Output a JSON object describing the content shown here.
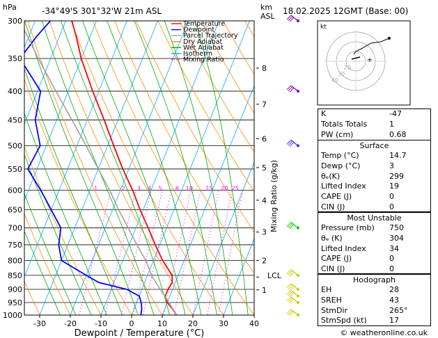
{
  "header": {
    "hpa_label": "hPa",
    "location": "-34°49'S  301°32'W  21m  ASL",
    "km_label": "km",
    "asl_label": "ASL",
    "datetime": "18.02.2025  12GMT  (Base: 00)"
  },
  "legend": [
    {
      "label": "Temperature",
      "color": "#ff0000",
      "style": "solid"
    },
    {
      "label": "Dewpoint",
      "color": "#0000ff",
      "style": "solid"
    },
    {
      "label": "Parcel Trajectory",
      "color": "#a0a0a0",
      "style": "solid"
    },
    {
      "label": "Dry Adiabat",
      "color": "#ff8c00",
      "style": "solid"
    },
    {
      "label": "Wet Adiabat",
      "color": "#00aa00",
      "style": "solid"
    },
    {
      "label": "Isotherm",
      "color": "#00aaff",
      "style": "solid"
    },
    {
      "label": "Mixing Ratio",
      "color": "#ff00ff",
      "style": "dotted"
    }
  ],
  "chart_data": {
    "type": "line",
    "xlabel": "Dewpoint / Temperature (°C)",
    "ylabel": "",
    "y_scale": "log-pressure",
    "xlim": [
      -35,
      40
    ],
    "ylim": [
      1000,
      300
    ],
    "pressure_ticks": [
      300,
      350,
      400,
      450,
      500,
      550,
      600,
      650,
      700,
      750,
      800,
      850,
      900,
      950,
      1000
    ],
    "temp_ticks": [
      -30,
      -20,
      -10,
      0,
      10,
      20,
      30,
      40
    ],
    "height_axis": {
      "ticks": [
        {
          "label": "8",
          "p": 364
        },
        {
          "label": "7",
          "p": 422
        },
        {
          "label": "6",
          "p": 486
        },
        {
          "label": "5",
          "p": 547
        },
        {
          "label": "4",
          "p": 625
        },
        {
          "label": "3",
          "p": 712
        },
        {
          "label": "2",
          "p": 800
        },
        {
          "label": "1",
          "p": 902
        }
      ],
      "lcl": {
        "label": "LCL",
        "p": 856
      },
      "mixing_label": "Mixing Ratio (g/kg)"
    },
    "mixing_ratio_labels": [
      {
        "label": "1",
        "p": 600,
        "t": -28
      },
      {
        "label": "2",
        "p": 600,
        "t": -19
      },
      {
        "label": "3",
        "p": 600,
        "t": -14
      },
      {
        "label": "4",
        "p": 600,
        "t": -10.5
      },
      {
        "label": "5",
        "p": 600,
        "t": -7
      },
      {
        "label": "8",
        "p": 600,
        "t": -1.5
      },
      {
        "label": "10",
        "p": 600,
        "t": 2.5
      },
      {
        "label": "15",
        "p": 600,
        "t": 9
      },
      {
        "label": "20",
        "p": 600,
        "t": 14
      },
      {
        "label": "25",
        "p": 600,
        "t": 17.5
      }
    ],
    "series": [
      {
        "name": "Temperature",
        "color": "#ff0000",
        "p": [
          1000,
          975,
          950,
          925,
          900,
          875,
          850,
          800,
          750,
          700,
          650,
          600,
          550,
          500,
          450,
          400,
          350,
          320,
          300
        ],
        "t": [
          14.7,
          12.5,
          10.0,
          8.5,
          8.5,
          9.0,
          8.0,
          3.0,
          -1.5,
          -6.0,
          -11.0,
          -16.0,
          -22.0,
          -28.0,
          -34.5,
          -42.0,
          -50.0,
          -54.5,
          -58.0
        ]
      },
      {
        "name": "Dewpoint",
        "color": "#0000ff",
        "p": [
          1000,
          975,
          950,
          925,
          900,
          875,
          850,
          800,
          750,
          700,
          650,
          600,
          550,
          500,
          450,
          400,
          350,
          320,
          300
        ],
        "t": [
          3.0,
          2.5,
          1.5,
          0.0,
          -5.0,
          -15.0,
          -20.0,
          -30.0,
          -33.0,
          -34.5,
          -40.0,
          -46.0,
          -53.0,
          -52.0,
          -57.0,
          -59.0,
          -70.0,
          -67.5,
          -65.0
        ]
      },
      {
        "name": "Parcel Trajectory",
        "color": "#a0a0a0",
        "p": [
          1000,
          950,
          900,
          856,
          800,
          750,
          700,
          650,
          600,
          550,
          500,
          450,
          400,
          350,
          300
        ],
        "t": [
          14.7,
          10.5,
          6.0,
          1.8,
          -2.5,
          -7.5,
          -12.5,
          -18.0,
          -23.5,
          -30.0,
          -37.0,
          -45.0,
          -54.0,
          -64.0,
          -75.0
        ]
      }
    ],
    "wind_barbs": [
      {
        "p": 1000
      },
      {
        "p": 950
      },
      {
        "p": 925
      },
      {
        "p": 900
      },
      {
        "p": 850
      },
      {
        "p": 700
      },
      {
        "p": 500
      },
      {
        "p": 400
      },
      {
        "p": 300
      }
    ]
  },
  "hodograph": {
    "unit_label": "kt",
    "ring_labels": [
      "40",
      "30",
      "20"
    ]
  },
  "indices": [
    {
      "label": "K",
      "value": "-47"
    },
    {
      "label": "Totals Totals",
      "value": "1"
    },
    {
      "label": "PW (cm)",
      "value": "0.68"
    }
  ],
  "surface": {
    "title": "Surface",
    "rows": [
      {
        "label": "Temp (°C)",
        "value": "14.7"
      },
      {
        "label": "Dewp (°C)",
        "value": "3"
      },
      {
        "label": "θₑ(K)",
        "value": "299"
      },
      {
        "label": "Lifted Index",
        "value": "19"
      },
      {
        "label": "CAPE (J)",
        "value": "0"
      },
      {
        "label": "CIN (J)",
        "value": "0"
      }
    ]
  },
  "most_unstable": {
    "title": "Most Unstable",
    "rows": [
      {
        "label": "Pressure (mb)",
        "value": "750"
      },
      {
        "label": "θₑ (K)",
        "value": "304"
      },
      {
        "label": "Lifted Index",
        "value": "34"
      },
      {
        "label": "CAPE (J)",
        "value": "0"
      },
      {
        "label": "CIN (J)",
        "value": "0"
      }
    ]
  },
  "hodo_table": {
    "title": "Hodograph",
    "rows": [
      {
        "label": "EH",
        "value": "28"
      },
      {
        "label": "SREH",
        "value": "43"
      },
      {
        "label": "StmDir",
        "value": "265°"
      },
      {
        "label": "StmSpd (kt)",
        "value": "17"
      }
    ]
  },
  "footer": "© weatheronline.co.uk",
  "colors": {
    "temperature": "#ff0000",
    "dewpoint": "#0000ff",
    "parcel": "#a0a0a0",
    "dry_adiabat": "#ff8c00",
    "wet_adiabat": "#00aa00",
    "isotherm": "#00aaff",
    "mixing_ratio": "#ff00ff",
    "wind_barb_low": "#cccc00",
    "wind_barb_mid": "#00cc00",
    "wind_barb_high": "#3333ff",
    "wind_barb_top": "#8800aa"
  }
}
